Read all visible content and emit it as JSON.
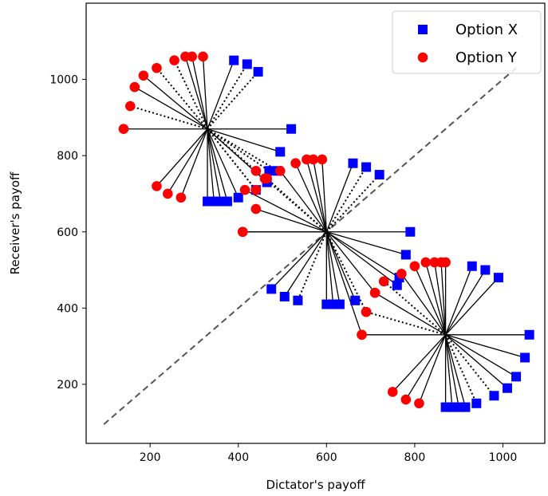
{
  "chart_data": {
    "type": "scatter",
    "xlabel": "Dictator's payoff",
    "ylabel": "Receiver's payoff",
    "xlim": [
      55,
      1095
    ],
    "ylim": [
      45,
      1200
    ],
    "x_ticks": [
      200,
      400,
      600,
      800,
      1000
    ],
    "y_ticks": [
      200,
      400,
      600,
      800,
      1000
    ],
    "grid": false,
    "legend_position": "top-right",
    "diagonal": {
      "from": [
        95,
        95
      ],
      "to": [
        1030,
        1030
      ],
      "style": "dashed",
      "color": "#555555"
    },
    "colors": {
      "option_x": "#0000ff",
      "option_y": "#ff0000",
      "spokes": "#000000"
    },
    "series": [
      {
        "name": "Option X",
        "marker": "square",
        "color": "#0000ff"
      },
      {
        "name": "Option Y",
        "marker": "circle",
        "color": "#ff0000"
      }
    ],
    "clusters": [
      {
        "center": [
          330,
          870
        ],
        "pairs": [
          {
            "x": [
              520,
              870
            ],
            "y": [
              140,
              870
            ],
            "style": "solid"
          },
          {
            "x": [
              495,
              810
            ],
            "y": [
              165,
              980
            ],
            "style": "solid"
          },
          {
            "x": [
              465,
              730
            ],
            "y": [
              185,
              1010
            ],
            "style": "solid"
          },
          {
            "x": [
              445,
              1020
            ],
            "y": [
              215,
              1030
            ],
            "style": "dotted"
          },
          {
            "x": [
              420,
              1040
            ],
            "y": [
              255,
              1050
            ],
            "style": "dotted"
          },
          {
            "x": [
              390,
              1050
            ],
            "y": [
              280,
              1060
            ],
            "style": "solid"
          },
          {
            "x": [
              400,
              690
            ],
            "y": [
              295,
              1060
            ],
            "style": "solid"
          },
          {
            "x": [
              330,
              680
            ],
            "y": [
              320,
              1060
            ],
            "style": "solid"
          },
          {
            "x": [
              345,
              680
            ],
            "y": [
              215,
              720
            ],
            "style": "solid"
          },
          {
            "x": [
              360,
              680
            ],
            "y": [
              240,
              700
            ],
            "style": "solid"
          },
          {
            "x": [
              375,
              680
            ],
            "y": [
              270,
              690
            ],
            "style": "solid"
          },
          {
            "x": [
              440,
              710
            ],
            "y": [
              155,
              930
            ],
            "style": "dotted"
          },
          {
            "x": [
              490,
              760
            ],
            "y": [
              440,
              710
            ],
            "style": "dotted"
          },
          {
            "x": [
              470,
              760
            ],
            "y": [
              460,
              740
            ],
            "style": "dotted"
          }
        ]
      },
      {
        "center": [
          600,
          600
        ],
        "pairs": [
          {
            "x": [
              790,
              600
            ],
            "y": [
              410,
              600
            ],
            "style": "solid"
          },
          {
            "x": [
              780,
              540
            ],
            "y": [
              440,
              660
            ],
            "style": "solid"
          },
          {
            "x": [
              760,
              460
            ],
            "y": [
              415,
              710
            ],
            "style": "solid"
          },
          {
            "x": [
              720,
              750
            ],
            "y": [
              465,
              740
            ],
            "style": "dotted"
          },
          {
            "x": [
              690,
              770
            ],
            "y": [
              440,
              760
            ],
            "style": "dotted"
          },
          {
            "x": [
              660,
              780
            ],
            "y": [
              495,
              760
            ],
            "style": "solid"
          },
          {
            "x": [
              600,
              410
            ],
            "y": [
              530,
              780
            ],
            "style": "solid"
          },
          {
            "x": [
              615,
              410
            ],
            "y": [
              555,
              790
            ],
            "style": "solid"
          },
          {
            "x": [
              630,
              410
            ],
            "y": [
              570,
              790
            ],
            "style": "solid"
          },
          {
            "x": [
              665,
              420
            ],
            "y": [
              590,
              790
            ],
            "style": "solid"
          },
          {
            "x": [
              475,
              450
            ],
            "y": [
              410,
              600
            ],
            "style": "solid"
          },
          {
            "x": [
              505,
              430
            ],
            "y": [
              680,
              330
            ],
            "style": "solid"
          },
          {
            "x": [
              535,
              420
            ],
            "y": [
              690,
              390
            ],
            "style": "dotted"
          },
          {
            "x": [
              765,
              480
            ],
            "y": [
              710,
              440
            ],
            "style": "solid"
          }
        ]
      },
      {
        "center": [
          870,
          330
        ],
        "pairs": [
          {
            "x": [
              1060,
              330
            ],
            "y": [
              680,
              330
            ],
            "style": "solid"
          },
          {
            "x": [
              1050,
              270
            ],
            "y": [
              750,
              180
            ],
            "style": "solid"
          },
          {
            "x": [
              1030,
              220
            ],
            "y": [
              780,
              160
            ],
            "style": "solid"
          },
          {
            "x": [
              1010,
              190
            ],
            "y": [
              810,
              150
            ],
            "style": "solid"
          },
          {
            "x": [
              980,
              170
            ],
            "y": [
              690,
              390
            ],
            "style": "dotted"
          },
          {
            "x": [
              940,
              150
            ],
            "y": [
              730,
              470
            ],
            "style": "dotted"
          },
          {
            "x": [
              870,
              140
            ],
            "y": [
              770,
              490
            ],
            "style": "solid"
          },
          {
            "x": [
              885,
              140
            ],
            "y": [
              800,
              510
            ],
            "style": "solid"
          },
          {
            "x": [
              900,
              140
            ],
            "y": [
              825,
              520
            ],
            "style": "solid"
          },
          {
            "x": [
              915,
              140
            ],
            "y": [
              845,
              520
            ],
            "style": "solid"
          },
          {
            "x": [
              930,
              510
            ],
            "y": [
              860,
              520
            ],
            "style": "solid"
          },
          {
            "x": [
              960,
              500
            ],
            "y": [
              870,
              520
            ],
            "style": "solid"
          },
          {
            "x": [
              990,
              480
            ],
            "y": [
              710,
              440
            ],
            "style": "solid"
          }
        ]
      }
    ]
  }
}
